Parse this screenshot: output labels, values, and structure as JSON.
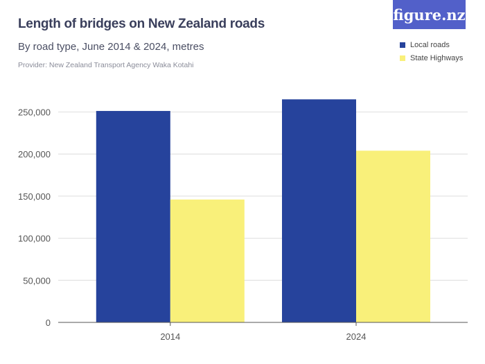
{
  "header": {
    "title": "Length of bridges on New Zealand roads",
    "subtitle": "By road type, June 2014 & 2024,  metres",
    "provider": "Provider: New Zealand Transport Agency Waka Kotahi",
    "logo": "figure.nz"
  },
  "chart_data": {
    "type": "bar",
    "title": "Length of bridges on New Zealand roads",
    "subtitle": "By road type, June 2014 & 2024,  metres",
    "categories": [
      "2014",
      "2024"
    ],
    "series": [
      {
        "name": "Local roads",
        "color": "#26439c",
        "values": [
          251200,
          265000
        ]
      },
      {
        "name": "State Highways",
        "color": "#f9f07a",
        "values": [
          146000,
          204000
        ]
      }
    ],
    "ylim": [
      0,
      265000
    ],
    "yticks": [
      0,
      50000,
      100000,
      150000,
      200000,
      250000
    ],
    "ytick_labels": [
      "0",
      "50,000",
      "100,000",
      "150,000",
      "200,000",
      "250,000"
    ],
    "grid": true,
    "legend_position": "top-right"
  }
}
